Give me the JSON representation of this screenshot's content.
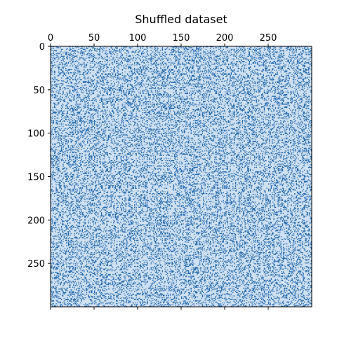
{
  "chart_data": {
    "type": "heatmap",
    "title": "Shuffled dataset",
    "xlabel": "",
    "ylabel": "",
    "rows": 300,
    "cols": 300,
    "xlim": [
      0,
      300
    ],
    "ylim": [
      300,
      0
    ],
    "x_axis_position": "top",
    "y_axis_inverted": true,
    "x_ticks": [
      0,
      50,
      100,
      150,
      200,
      250
    ],
    "y_ticks": [
      0,
      50,
      100,
      150,
      200,
      250
    ],
    "x_tick_labels": [
      "0",
      "50",
      "100",
      "150",
      "200",
      "250"
    ],
    "y_tick_labels": [
      "0",
      "50",
      "100",
      "150",
      "200",
      "250"
    ],
    "values_description": "binary matrix (biclustering data after random row/column shuffle)",
    "background_color": "#cfe0f3",
    "foreground_color": "#1f66ac",
    "grid": false,
    "legend": "none"
  }
}
